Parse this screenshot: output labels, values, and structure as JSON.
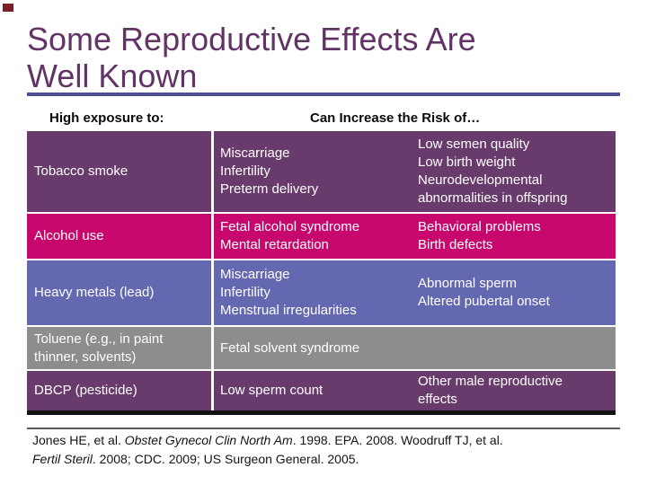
{
  "title": {
    "line1": "Some Reproductive Effects Are",
    "line2": "Well Known"
  },
  "headers": {
    "exposure": "High exposure to:",
    "risk": "Can Increase the Risk of…"
  },
  "table": {
    "rows": [
      {
        "exposure": [
          "Tobacco smoke"
        ],
        "mid": [
          "Miscarriage",
          "Infertility",
          "Preterm delivery"
        ],
        "right": [
          "Low semen quality",
          "Low birth weight",
          "Neurodevelopmental",
          "abnormalities in offspring"
        ],
        "color": "#693A6C"
      },
      {
        "exposure": [
          "Alcohol use"
        ],
        "mid": [
          "Fetal alcohol syndrome",
          "Mental retardation"
        ],
        "right": [
          "Behavioral problems",
          "Birth defects"
        ],
        "color": "#C7076D"
      },
      {
        "exposure": [
          "Heavy metals (lead)"
        ],
        "mid": [
          "Miscarriage",
          "Infertility",
          "Menstrual irregularities"
        ],
        "right": [
          "Abnormal sperm",
          "Altered pubertal onset"
        ],
        "color": "#6368B0"
      },
      {
        "exposure": [
          "Toluene (e.g., in paint",
          "thinner, solvents)"
        ],
        "mid": [
          "Fetal solvent syndrome"
        ],
        "right": [],
        "color": "#8D8D8D"
      },
      {
        "exposure": [
          "DBCP (pesticide)"
        ],
        "mid": [
          "Low sperm count"
        ],
        "right": [
          "Other male reproductive",
          "effects"
        ],
        "color": "#693A6C"
      }
    ]
  },
  "footer": {
    "line1": [
      {
        "text": "Jones HE, et al. ",
        "italic": false
      },
      {
        "text": "Obstet Gynecol Clin North Am",
        "italic": true
      },
      {
        "text": ". 1998. EPA. 2008. Woodruff TJ, et al.",
        "italic": false
      }
    ],
    "line2": [
      {
        "text": "Fertil Steril",
        "italic": true
      },
      {
        "text": ". 2008; CDC. 2009; US Surgeon General. 2005.",
        "italic": false
      }
    ]
  },
  "colors": {
    "corner_mark": "#7B1E28",
    "title_text": "#613465",
    "title_rule": "#4E4E96",
    "row_purple": "#693A6C",
    "row_magenta": "#C7076D",
    "row_blue": "#6368B0",
    "row_gray": "#8D8D8D",
    "table_bottom_border": "#121212",
    "row_text": "#FFFFFF",
    "header_text": "#0A0A0A"
  }
}
